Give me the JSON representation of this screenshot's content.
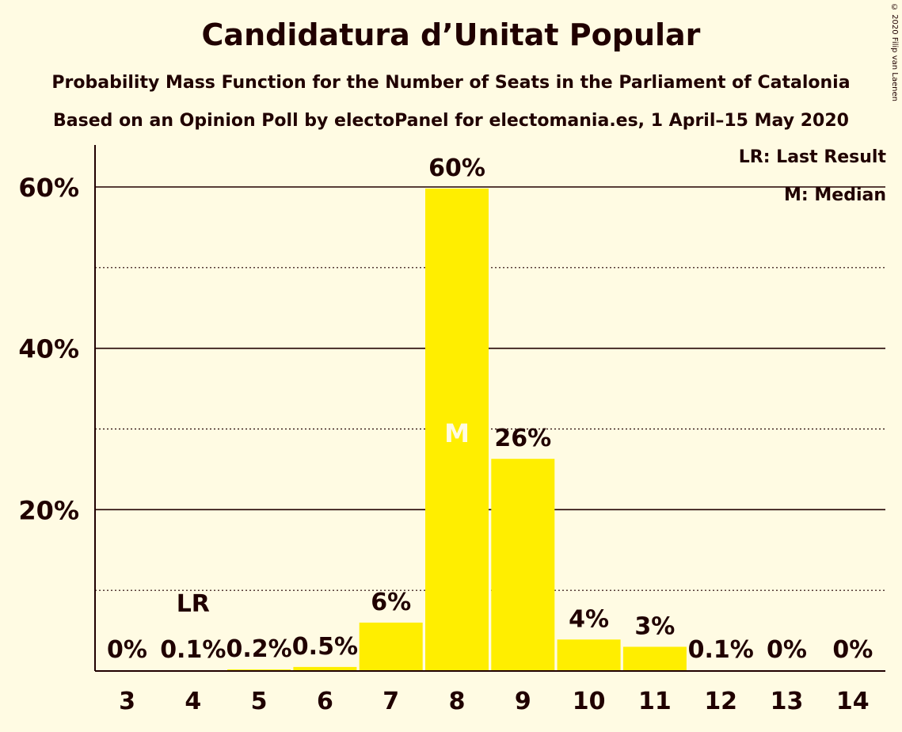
{
  "header": {
    "title": "Candidatura d’Unitat Popular",
    "subtitle1": "Probability Mass Function for the Number of Seats in the Parliament of Catalonia",
    "subtitle2": "Based on an Opinion Poll by electoPanel for electomania.es, 1 April–15 May 2020",
    "copyright": "© 2020 Filip van Laenen"
  },
  "legend": {
    "last_result": "LR: Last Result",
    "median": "M: Median"
  },
  "colors": {
    "background": "#fffbe3",
    "bar": "#ffee00",
    "text": "#200000",
    "median_marker": "#fffbe3"
  },
  "chart_data": {
    "type": "bar",
    "categories": [
      "3",
      "4",
      "5",
      "6",
      "7",
      "8",
      "9",
      "10",
      "11",
      "12",
      "13",
      "14"
    ],
    "values": [
      0,
      0.1,
      0.2,
      0.5,
      6,
      59.8,
      26.3,
      3.9,
      3,
      0.1,
      0,
      0
    ],
    "value_labels": [
      "0%",
      "0.1%",
      "0.2%",
      "0.5%",
      "6%",
      "60%",
      "26%",
      "4%",
      "3%",
      "0.1%",
      "0%",
      "0%"
    ],
    "ylim": [
      0,
      65
    ],
    "yticks_major": [
      20,
      40,
      60
    ],
    "yticks_minor": [
      10,
      30,
      50
    ],
    "ytick_labels": [
      "20%",
      "40%",
      "60%"
    ],
    "last_result_category": "4",
    "last_result_label": "LR",
    "median_category": "8",
    "median_label": "M",
    "grid": true,
    "legend_position": "top-right"
  }
}
